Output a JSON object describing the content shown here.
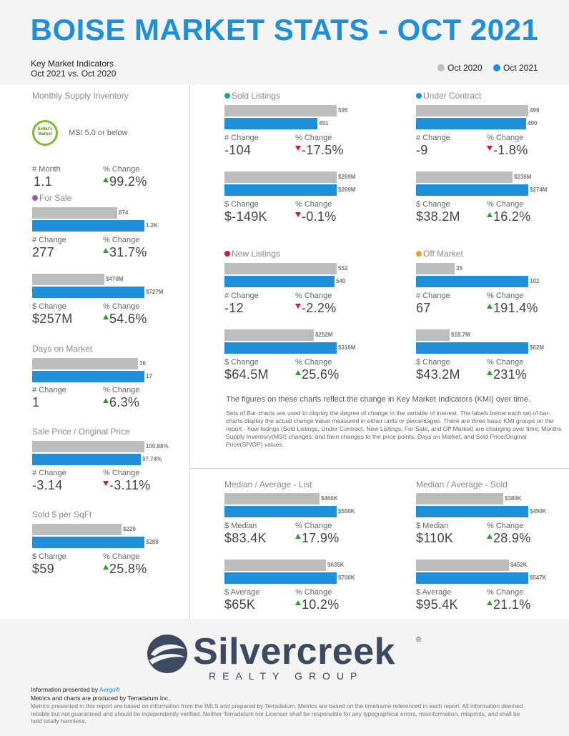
{
  "title": "BOISE MARKET STATS - OCT 2021",
  "kmi": {
    "line1": "Key Market Indicators",
    "line2": "Oct 2021 vs. Oct 2020"
  },
  "legend": [
    {
      "label": "Oct 2020",
      "color": "#bdbdbd"
    },
    {
      "label": "Oct 2021",
      "color": "#1e8fd8"
    }
  ],
  "msi": {
    "title": "Monthly Supply Inventory",
    "badge": "Seller's Market",
    "badge_line1": "Seller's",
    "badge_line2": "Market",
    "note": "MSI 5.0 or below",
    "lab1": "# Month",
    "val1": "1.1",
    "lab2": "% Change",
    "val2": "99.2%"
  },
  "for_sale": {
    "title": "For Sale",
    "dot": "#9b59b6",
    "a_prev": "874",
    "a_curr": "1.2K",
    "a_prev_n": 874,
    "a_curr_n": 1151,
    "a_lab1": "# Change",
    "a_val1": "277",
    "a_lab2": "% Change",
    "a_val2": "31.7%",
    "b_prev": "$470M",
    "b_curr": "$727M",
    "b_prev_n": 470,
    "b_curr_n": 727,
    "b_lab1": "$ Change",
    "b_val1": "$257M",
    "b_lab2": "% Change",
    "b_val2": "54.6%"
  },
  "dom": {
    "title": "Days on Market",
    "prev": "16",
    "curr": "17",
    "prev_n": 16,
    "curr_n": 17,
    "lab1": "# Change",
    "val1": "1",
    "lab2": "% Change",
    "val2": "6.3%"
  },
  "spop": {
    "title": "Sale Price / Original Price",
    "prev": "100.88%",
    "curr": "97.74%",
    "prev_n": 100.88,
    "curr_n": 97.74,
    "lab1": "# Change",
    "val1": "-3.14",
    "lab2": "% Change",
    "val2": "-3.11%"
  },
  "sqft": {
    "title": "Sold $ per SqFt",
    "prev": "$229",
    "curr": "$288",
    "prev_n": 229,
    "curr_n": 288,
    "lab1": "$ Change",
    "val1": "$59",
    "lab2": "% Change",
    "val2": "25.8%"
  },
  "sold": {
    "title": "Sold Listings",
    "dot": "#1aa58c",
    "a_prev": "595",
    "a_curr": "491",
    "a_prev_n": 595,
    "a_curr_n": 491,
    "a_lab1": "# Change",
    "a_val1": "-104",
    "a_lab2": "% Change",
    "a_val2": "-17.5%",
    "b_prev": "$269M",
    "b_curr": "$269M",
    "b_prev_n": 269,
    "b_curr_n": 269,
    "b_lab1": "$ Change",
    "b_val1": "$-149K",
    "b_lab2": "% Change",
    "b_val2": "-0.1%"
  },
  "under_contract": {
    "title": "Under Contract",
    "dot": "#1e8fd8",
    "a_prev": "499",
    "a_curr": "490",
    "a_prev_n": 499,
    "a_curr_n": 490,
    "a_lab1": "# Change",
    "a_val1": "-9",
    "a_lab2": "% Change",
    "a_val2": "-1.8%",
    "b_prev": "$236M",
    "b_curr": "$274M",
    "b_prev_n": 236,
    "b_curr_n": 274,
    "b_lab1": "$ Change",
    "b_val1": "$38.2M",
    "b_lab2": "% Change",
    "b_val2": "16.2%"
  },
  "new_listings": {
    "title": "New Listings",
    "dot": "#d11a2a",
    "a_prev": "552",
    "a_curr": "540",
    "a_prev_n": 552,
    "a_curr_n": 540,
    "a_lab1": "# Change",
    "a_val1": "-12",
    "a_lab2": "% Change",
    "a_val2": "-2.2%",
    "b_prev": "$252M",
    "b_curr": "$316M",
    "b_prev_n": 252,
    "b_curr_n": 316,
    "b_lab1": "$ Change",
    "b_val1": "$64.5M",
    "b_lab2": "% Change",
    "b_val2": "25.6%"
  },
  "off_market": {
    "title": "Off Market",
    "dot": "#f0a020",
    "a_prev": "35",
    "a_curr": "102",
    "a_prev_n": 35,
    "a_curr_n": 102,
    "a_lab1": "# Change",
    "a_val1": "67",
    "a_lab2": "% Change",
    "a_val2": "191.4%",
    "b_prev": "$18.7M",
    "b_curr": "$62M",
    "b_prev_n": 18.7,
    "b_curr_n": 62,
    "b_lab1": "$ Change",
    "b_val1": "$43.2M",
    "b_lab2": "% Change",
    "b_val2": "231%"
  },
  "notes": {
    "heading": "The figures on these charts reflect the change in Key Market Indicators (KMI) over time.",
    "body": "Sets of Bar-charts are used to display the degree of change in the variable of interest. The labels below each set of bar-charts display the actual change value measured in either units or percentages. There are three basic KMI groups on the report - how listings (Sold Listings, Under Contract, New Listings, For Sale, and Off Market) are changing over time; Months Supply Inventory(MSI) changes; and then changes to the price points, Days on Market, and Sold Price/Original Price(SP/OP) values."
  },
  "med_list": {
    "title": "Median / Average - List",
    "a_prev": "$466K",
    "a_curr": "$550K",
    "a_prev_n": 466,
    "a_curr_n": 550,
    "a_lab1": "$ Median",
    "a_val1": "$83.4K",
    "a_lab2": "% Change",
    "a_val2": "17.9%",
    "b_prev": "$635K",
    "b_curr": "$700K",
    "b_prev_n": 635,
    "b_curr_n": 700,
    "b_lab1": "$ Average",
    "b_val1": "$65K",
    "b_lab2": "% Change",
    "b_val2": "10.2%"
  },
  "med_sold": {
    "title": "Median / Average - Sold",
    "a_prev": "$380K",
    "a_curr": "$490K",
    "a_prev_n": 380,
    "a_curr_n": 490,
    "a_lab1": "$ Median",
    "a_val1": "$110K",
    "a_lab2": "% Change",
    "a_val2": "28.9%",
    "b_prev": "$452K",
    "b_curr": "$547K",
    "b_prev_n": 452,
    "b_curr_n": 547,
    "b_lab1": "$ Average",
    "b_val1": "$95.4K",
    "b_lab2": "% Change",
    "b_val2": "21.1%"
  },
  "logo": {
    "name": "Silvercreek",
    "reg": "®",
    "sub": "REALTY GROUP"
  },
  "footer": {
    "presented_prefix": "Information presented by ",
    "presented_link": "Aergo®",
    "produced": "Metrics and charts are produced by Terradatum Inc.",
    "disclaimer": "Metrics presented in this report are based on information from the IMLS and prepared by Terradatum. Metrics are based on the timeframe referenced in each report. All information deemed reliable but not guaranteed and should be independently verified. Neither Terradatum nor Licensor shall be responsible for any typographical errors, misinformation, misprints, and shall be held totally harmless."
  }
}
